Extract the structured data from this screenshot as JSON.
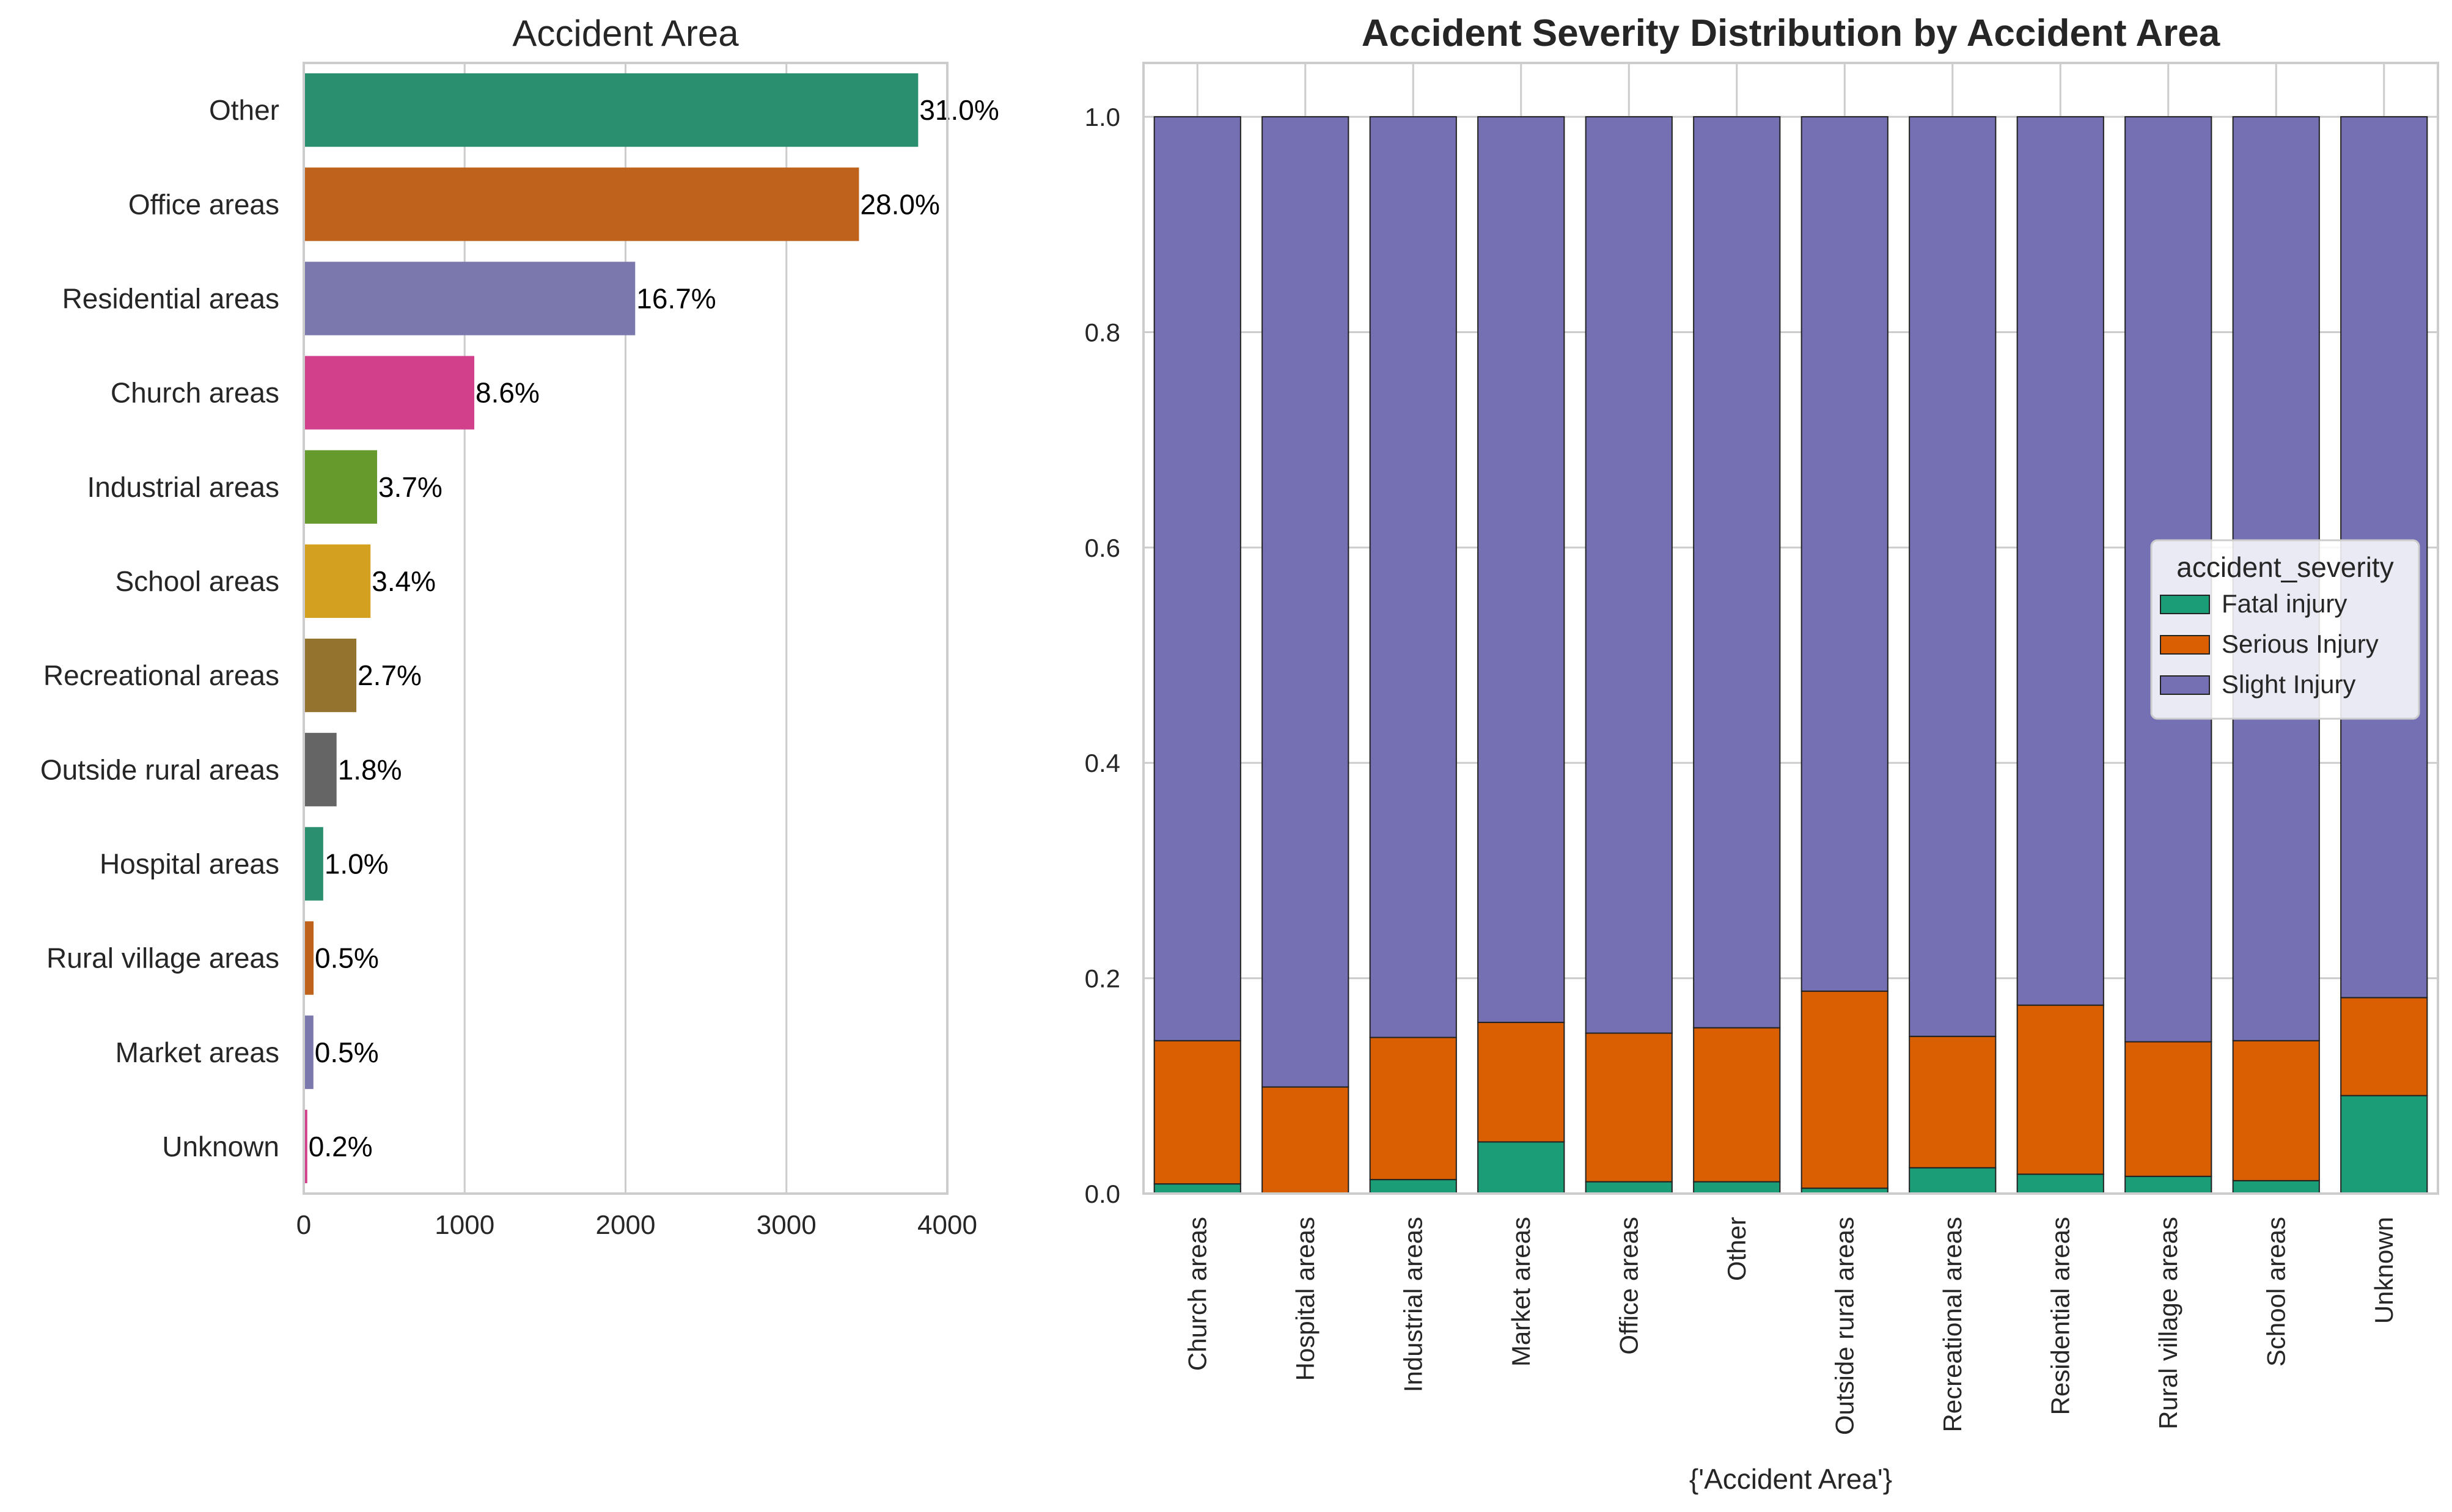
{
  "chart_data": [
    {
      "type": "bar",
      "orientation": "horizontal",
      "title": "Accident Area",
      "xlabel": "",
      "ylabel": "",
      "xlim": [
        0,
        4000
      ],
      "xticks": [
        "0",
        "1000",
        "2000",
        "3000",
        "4000"
      ],
      "grid": "vertical",
      "categories": [
        "Other",
        "Office areas",
        "Residential areas",
        "Church areas",
        "Industrial areas",
        "School areas",
        "Recreational areas",
        "Outside rural areas",
        "Hospital areas",
        "Rural village areas",
        "Market areas",
        "Unknown"
      ],
      "values": [
        3819,
        3451,
        2060,
        1060,
        456,
        415,
        327,
        204,
        121,
        61,
        60,
        22
      ],
      "labels": [
        "31.0%",
        "28.0%",
        "16.7%",
        "8.6%",
        "3.7%",
        "3.4%",
        "2.7%",
        "1.8%",
        "1.0%",
        "0.5%",
        "0.5%",
        "0.2%"
      ],
      "colors": [
        "#2a8f6f",
        "#be621c",
        "#7b78ad",
        "#d2408c",
        "#679a2c",
        "#d4a01f",
        "#94732e",
        "#656565",
        "#2a8f6f",
        "#be621c",
        "#7b78ad",
        "#d2408c"
      ]
    },
    {
      "type": "bar",
      "stacked": true,
      "title": "Accident Severity Distribution by Accident Area",
      "xlabel": "{'Accident Area'}",
      "ylabel": "",
      "ylim": [
        0,
        1.05
      ],
      "yticks": [
        "0.0",
        "0.2",
        "0.4",
        "0.6",
        "0.8",
        "1.0"
      ],
      "grid": "both",
      "categories": [
        "Church areas",
        "Hospital areas",
        "Industrial areas",
        "Market areas",
        "Office areas",
        "Other",
        "Outside rural areas",
        "Recreational areas",
        "Residential areas",
        "Rural village areas",
        "School areas",
        "Unknown"
      ],
      "series": [
        {
          "name": "Fatal injury",
          "color": "#1b9e77",
          "values": [
            0.009,
            0.0,
            0.013,
            0.048,
            0.011,
            0.011,
            0.005,
            0.024,
            0.018,
            0.016,
            0.012,
            0.091
          ],
          "labels": [
            "0.9%",
            "",
            "1.3%",
            "4.8%",
            "1.1%",
            "1.1%",
            "0.5%",
            "2.4%",
            "1.8%",
            "1.6%",
            "1.2%",
            "9.1%"
          ]
        },
        {
          "name": "Serious Injury",
          "color": "#d95f02",
          "values": [
            0.133,
            0.099,
            0.132,
            0.111,
            0.138,
            0.143,
            0.183,
            0.122,
            0.157,
            0.125,
            0.13,
            0.091
          ],
          "labels": [
            "13.3%",
            "9.9%",
            "13.2%",
            "11.1%",
            "13.8%",
            "14.3%",
            "18.3%",
            "12.2%",
            "15.7%",
            "12.5%",
            "13.0%",
            "9.1%"
          ]
        },
        {
          "name": "Slight Injury",
          "color": "#7570b3",
          "values": [
            0.858,
            0.901,
            0.855,
            0.841,
            0.851,
            0.846,
            0.812,
            0.854,
            0.825,
            0.859,
            0.858,
            0.818
          ]
        }
      ],
      "legend": {
        "title": "accident_severity",
        "placement": "center-right"
      }
    }
  ]
}
